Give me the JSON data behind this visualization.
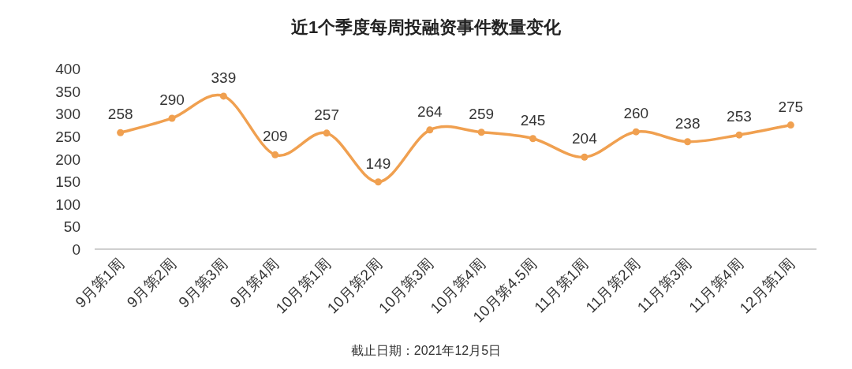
{
  "chart_data": {
    "type": "line",
    "title": "近1个季度每周投融资事件数量变化",
    "categories": [
      "9月第1周",
      "9月第2周",
      "9月第3周",
      "9月第4周",
      "10月第1周",
      "10月第2周",
      "10月第3周",
      "10月第4周",
      "10月第4.5周",
      "11月第1周",
      "11月第2周",
      "11月第3周",
      "11月第4周",
      "12月第1周"
    ],
    "series": [
      {
        "color": "#f0a050",
        "values": [
          258,
          290,
          339,
          209,
          257,
          149,
          264,
          259,
          245,
          204,
          260,
          238,
          253,
          275
        ]
      }
    ],
    "ylim": [
      0,
      400
    ],
    "yticks": [
      0,
      50,
      100,
      150,
      200,
      250,
      300,
      350,
      400
    ],
    "marker": "circle",
    "line_style": "solid",
    "data_labels": true,
    "annotations": [
      "截止日期：2021年12月5日"
    ]
  }
}
